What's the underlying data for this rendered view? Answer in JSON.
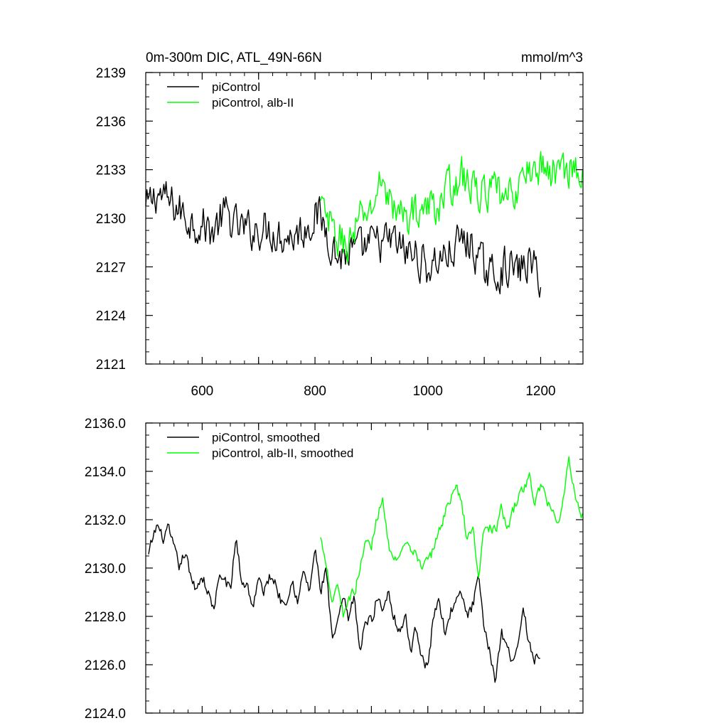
{
  "chart_data": [
    {
      "type": "line",
      "title": "0m-300m DIC, ATL_49N-66N",
      "units": "mmol/m^3",
      "xlim": [
        500,
        1275
      ],
      "ylim": [
        2121,
        2139
      ],
      "xticks": [
        600,
        800,
        1000,
        1200
      ],
      "xtick_labels": [
        "600",
        "800",
        "1000",
        "1200"
      ],
      "yticks": [
        2121,
        2124,
        2127,
        2130,
        2133,
        2136,
        2139
      ],
      "ytick_labels": [
        "2121",
        "2124",
        "2127",
        "2130",
        "2133",
        "2136",
        "2139"
      ],
      "legend_position": "top-left",
      "series": [
        {
          "name": "piControl",
          "color": "#000000",
          "x": [
            500,
            520,
            540,
            560,
            580,
            600,
            620,
            640,
            660,
            680,
            700,
            720,
            740,
            760,
            780,
            800,
            810,
            820,
            840,
            860,
            880,
            900,
            920,
            940,
            960,
            980,
            1000,
            1020,
            1040,
            1060,
            1080,
            1100,
            1120,
            1140,
            1160,
            1180,
            1200
          ],
          "y": [
            2130.5,
            2131.6,
            2131.0,
            2130.5,
            2129.8,
            2129.6,
            2129.2,
            2130.3,
            2129.5,
            2129.2,
            2129.4,
            2129.3,
            2129.0,
            2128.9,
            2129.3,
            2130.2,
            2130.0,
            2129.3,
            2127.6,
            2127.8,
            2128.0,
            2128.4,
            2128.5,
            2128.6,
            2127.9,
            2127.7,
            2126.9,
            2127.5,
            2127.8,
            2128.7,
            2128.2,
            2126.8,
            2126.5,
            2127.1,
            2126.7,
            2127.3,
            2126.4
          ],
          "noise": 1.1
        },
        {
          "name": "piControl, alb-II",
          "color": "#00ff00",
          "x": [
            810,
            820,
            840,
            860,
            880,
            900,
            920,
            940,
            960,
            980,
            1000,
            1020,
            1040,
            1060,
            1080,
            1100,
            1120,
            1140,
            1160,
            1180,
            1200,
            1220,
            1240,
            1260,
            1275
          ],
          "y": [
            2130.8,
            2129.9,
            2128.7,
            2128.4,
            2129.9,
            2130.6,
            2132.5,
            2130.4,
            2130.1,
            2130.5,
            2130.6,
            2130.9,
            2132.0,
            2132.6,
            2131.8,
            2131.5,
            2131.6,
            2131.0,
            2132.0,
            2132.9,
            2133.2,
            2132.8,
            2133.0,
            2133.3,
            2132.2
          ],
          "noise": 1.05
        }
      ]
    },
    {
      "type": "line",
      "xlim": [
        500,
        1275
      ],
      "ylim": [
        2124.0,
        2136.0
      ],
      "xticks": [
        600,
        800,
        1000,
        1200
      ],
      "yticks": [
        2124.0,
        2126.0,
        2128.0,
        2130.0,
        2132.0,
        2134.0,
        2136.0
      ],
      "ytick_labels": [
        "2124.0",
        "2126.0",
        "2128.0",
        "2130.0",
        "2132.0",
        "2134.0",
        "2136.0"
      ],
      "legend_position": "top-left",
      "series": [
        {
          "name": "piControl, smoothed",
          "color": "#000000",
          "x": [
            505,
            510,
            520,
            530,
            540,
            550,
            560,
            570,
            580,
            590,
            600,
            610,
            620,
            630,
            640,
            650,
            660,
            670,
            680,
            690,
            700,
            710,
            720,
            730,
            740,
            750,
            760,
            770,
            780,
            790,
            800,
            810,
            820,
            830,
            840,
            850,
            860,
            870,
            880,
            890,
            900,
            910,
            920,
            930,
            940,
            950,
            960,
            970,
            980,
            990,
            1000,
            1010,
            1020,
            1030,
            1040,
            1050,
            1060,
            1070,
            1080,
            1090,
            1100,
            1110,
            1120,
            1130,
            1140,
            1150,
            1160,
            1170,
            1180,
            1190,
            1200
          ],
          "y": [
            2130.5,
            2131.0,
            2131.8,
            2131.2,
            2131.6,
            2130.8,
            2130.0,
            2130.7,
            2129.5,
            2129.2,
            2129.7,
            2129.0,
            2128.3,
            2129.5,
            2129.6,
            2129.0,
            2131.3,
            2129.4,
            2129.3,
            2128.4,
            2129.5,
            2129.0,
            2129.7,
            2129.4,
            2128.6,
            2128.8,
            2129.5,
            2128.6,
            2129.9,
            2129.0,
            2130.8,
            2129.0,
            2130.0,
            2127.0,
            2127.6,
            2128.8,
            2127.8,
            2128.9,
            2126.4,
            2127.9,
            2127.8,
            2128.8,
            2128.3,
            2129.1,
            2128.0,
            2127.4,
            2128.0,
            2126.6,
            2127.6,
            2126.3,
            2125.8,
            2128.0,
            2128.8,
            2127.3,
            2128.2,
            2128.6,
            2128.9,
            2128.0,
            2128.5,
            2129.6,
            2127.3,
            2126.6,
            2125.3,
            2127.4,
            2126.8,
            2126.2,
            2126.9,
            2128.3,
            2126.8,
            2126.2,
            2126.5
          ],
          "noise": 0.22
        },
        {
          "name": "piControl, alb-II, smoothed",
          "color": "#00ff00",
          "x": [
            810,
            820,
            830,
            840,
            850,
            860,
            870,
            880,
            890,
            900,
            910,
            920,
            930,
            940,
            950,
            960,
            970,
            980,
            990,
            1000,
            1010,
            1020,
            1030,
            1040,
            1050,
            1060,
            1070,
            1080,
            1090,
            1100,
            1110,
            1120,
            1130,
            1140,
            1150,
            1160,
            1170,
            1180,
            1190,
            1200,
            1210,
            1220,
            1230,
            1240,
            1250,
            1260,
            1270,
            1275
          ],
          "y": [
            2131.2,
            2130.3,
            2128.6,
            2129.4,
            2128.1,
            2128.8,
            2129.0,
            2130.0,
            2131.1,
            2130.9,
            2132.1,
            2133.0,
            2131.0,
            2130.2,
            2130.3,
            2131.0,
            2130.6,
            2130.6,
            2130.1,
            2130.2,
            2130.8,
            2131.6,
            2132.2,
            2132.9,
            2133.4,
            2132.6,
            2131.2,
            2131.6,
            2129.7,
            2131.6,
            2131.7,
            2131.5,
            2132.4,
            2131.6,
            2132.3,
            2132.9,
            2133.3,
            2133.8,
            2132.6,
            2133.5,
            2132.8,
            2132.5,
            2131.8,
            2132.8,
            2134.6,
            2133.2,
            2132.4,
            2132.1
          ],
          "noise": 0.2
        }
      ]
    }
  ]
}
